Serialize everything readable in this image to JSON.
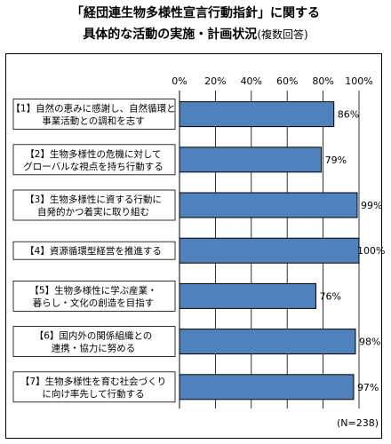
{
  "header": {
    "title_line1": "「経団連生物多様性宣言行動指針」に関する",
    "title_line2": "具体的な活動の実施・計画状況",
    "title_suffix": "(複数回答)"
  },
  "note": "(N=238)",
  "chart_data": {
    "type": "bar",
    "orientation": "horizontal",
    "categories": [
      [
        "【1】自然の恵みに感謝し、自然循環と",
        "事業活動との調和を志す"
      ],
      [
        "【2】生物多様性の危機に対して",
        "グローバルな視点を持ち行動する"
      ],
      [
        "【3】生物多様性に資する行動に",
        "自発的かつ着実に取り組む"
      ],
      [
        "【4】資源循環型経営を推進する"
      ],
      [
        "【5】生物多様性に学ぶ産業・",
        "暮らし・文化の創造を目指す"
      ],
      [
        "【6】国内外の関係組織との",
        "連携・協力に努める"
      ],
      [
        "【7】生物多様性を育む社会づくり",
        "に向け率先して行動する"
      ]
    ],
    "values": [
      86,
      79,
      99,
      100,
      76,
      98,
      97
    ],
    "value_labels": [
      "86%",
      "79%",
      "99%",
      "100%",
      "76%",
      "98%",
      "97%"
    ],
    "xlim": [
      0,
      100
    ],
    "ticks": [
      0,
      20,
      40,
      60,
      80,
      100
    ],
    "tick_labels": [
      "0%",
      "20%",
      "40%",
      "60%",
      "80%",
      "100%"
    ],
    "bar_color": "#4f81bd",
    "bar_stroke": "#000000"
  }
}
